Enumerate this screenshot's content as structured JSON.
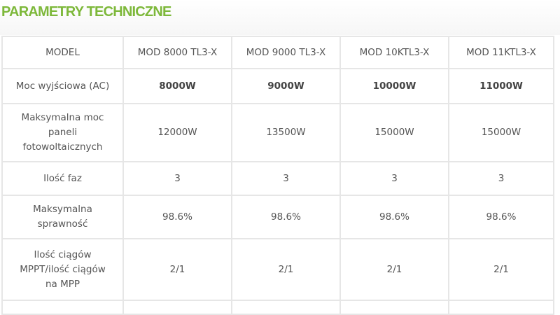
{
  "title": "PARAMETRY TECHNICZNE",
  "header": [
    "MODEL",
    "MOD 8000 TL3-X",
    "MOD 9000 TL3-X",
    "MOD 10KTL3-X",
    "MOD 11KTL3-X"
  ],
  "rows": [
    {
      "label": "Moc wyjściowa (AC)",
      "values": [
        "8000W",
        "9000W",
        "10000W",
        "11000W"
      ]
    },
    {
      "label": "Maksymalna moc paneli fotowoltaicznych",
      "values": [
        "12000W",
        "13500W",
        "15000W",
        "15000W"
      ]
    },
    {
      "label": "Ilość faz",
      "values": [
        "3",
        "3",
        "3",
        "3"
      ]
    },
    {
      "label": "Maksymalna sprawność",
      "values": [
        "98.6%",
        "98.6%",
        "98.6%",
        "98.6%"
      ]
    },
    {
      "label": "Ilość ciągów MPPT/ilość ciągów na MPP",
      "values": [
        "2/1",
        "2/1",
        "2/1",
        "2/1"
      ]
    }
  ],
  "colors": {
    "title": "#7db83a",
    "border": "#e6e6e6",
    "text": "#555555"
  }
}
